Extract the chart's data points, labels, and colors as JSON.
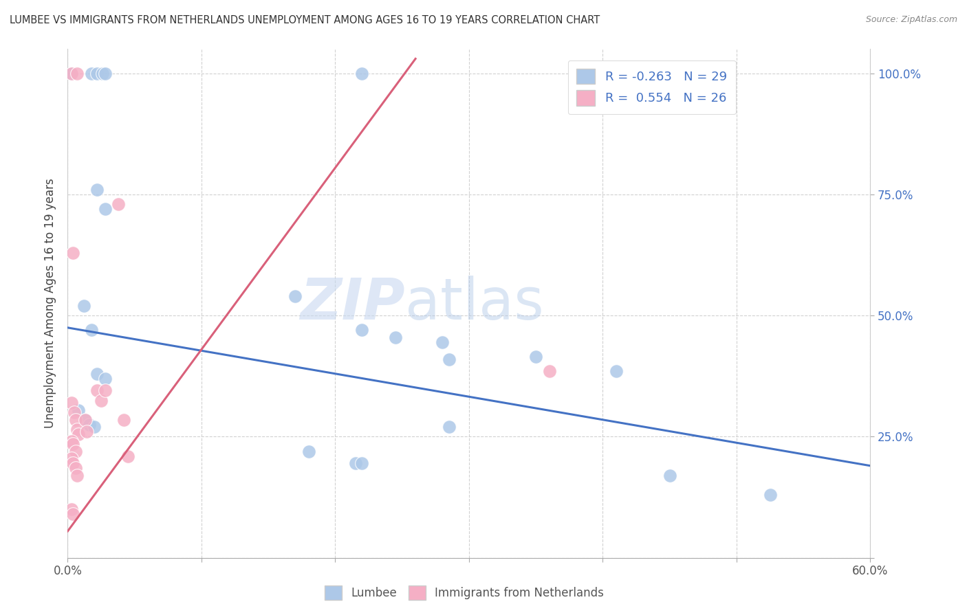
{
  "title": "LUMBEE VS IMMIGRANTS FROM NETHERLANDS UNEMPLOYMENT AMONG AGES 16 TO 19 YEARS CORRELATION CHART",
  "source": "Source: ZipAtlas.com",
  "ylabel": "Unemployment Among Ages 16 to 19 years",
  "xlim": [
    0.0,
    0.6
  ],
  "ylim": [
    0.0,
    1.05
  ],
  "xticks": [
    0.0,
    0.1,
    0.2,
    0.3,
    0.4,
    0.5,
    0.6
  ],
  "xticklabels": [
    "0.0%",
    "",
    "",
    "",
    "",
    "",
    "60.0%"
  ],
  "yticks": [
    0.0,
    0.25,
    0.5,
    0.75,
    1.0
  ],
  "yticklabels": [
    "",
    "25.0%",
    "50.0%",
    "75.0%",
    "100.0%"
  ],
  "legend_blue_r": "-0.263",
  "legend_blue_n": "29",
  "legend_pink_r": "0.554",
  "legend_pink_n": "26",
  "blue_color": "#adc8e8",
  "pink_color": "#f5afc5",
  "blue_line_color": "#4472c4",
  "pink_line_color": "#d9607a",
  "watermark_zip": "ZIP",
  "watermark_atlas": "atlas",
  "blue_scatter": [
    [
      0.003,
      1.0
    ],
    [
      0.018,
      1.0
    ],
    [
      0.022,
      1.0
    ],
    [
      0.026,
      1.0
    ],
    [
      0.028,
      1.0
    ],
    [
      0.22,
      1.0
    ],
    [
      0.022,
      0.76
    ],
    [
      0.028,
      0.72
    ],
    [
      0.012,
      0.52
    ],
    [
      0.018,
      0.47
    ],
    [
      0.17,
      0.54
    ],
    [
      0.22,
      0.47
    ],
    [
      0.245,
      0.455
    ],
    [
      0.28,
      0.445
    ],
    [
      0.285,
      0.41
    ],
    [
      0.35,
      0.415
    ],
    [
      0.41,
      0.385
    ],
    [
      0.008,
      0.305
    ],
    [
      0.013,
      0.285
    ],
    [
      0.016,
      0.275
    ],
    [
      0.02,
      0.27
    ],
    [
      0.18,
      0.22
    ],
    [
      0.215,
      0.195
    ],
    [
      0.22,
      0.195
    ],
    [
      0.45,
      0.17
    ],
    [
      0.525,
      0.13
    ],
    [
      0.285,
      0.27
    ],
    [
      0.022,
      0.38
    ],
    [
      0.028,
      0.37
    ]
  ],
  "pink_scatter": [
    [
      0.003,
      1.0
    ],
    [
      0.007,
      1.0
    ],
    [
      0.004,
      0.63
    ],
    [
      0.003,
      0.32
    ],
    [
      0.005,
      0.3
    ],
    [
      0.006,
      0.285
    ],
    [
      0.007,
      0.265
    ],
    [
      0.008,
      0.255
    ],
    [
      0.003,
      0.24
    ],
    [
      0.004,
      0.235
    ],
    [
      0.006,
      0.22
    ],
    [
      0.003,
      0.205
    ],
    [
      0.004,
      0.195
    ],
    [
      0.006,
      0.185
    ],
    [
      0.007,
      0.17
    ],
    [
      0.003,
      0.1
    ],
    [
      0.004,
      0.09
    ],
    [
      0.013,
      0.285
    ],
    [
      0.014,
      0.26
    ],
    [
      0.022,
      0.345
    ],
    [
      0.025,
      0.325
    ],
    [
      0.028,
      0.345
    ],
    [
      0.038,
      0.73
    ],
    [
      0.042,
      0.285
    ],
    [
      0.045,
      0.21
    ],
    [
      0.36,
      0.385
    ]
  ],
  "blue_trendline": [
    [
      0.0,
      0.475
    ],
    [
      0.6,
      0.19
    ]
  ],
  "pink_trendline": [
    [
      0.0,
      0.055
    ],
    [
      0.26,
      1.03
    ]
  ]
}
